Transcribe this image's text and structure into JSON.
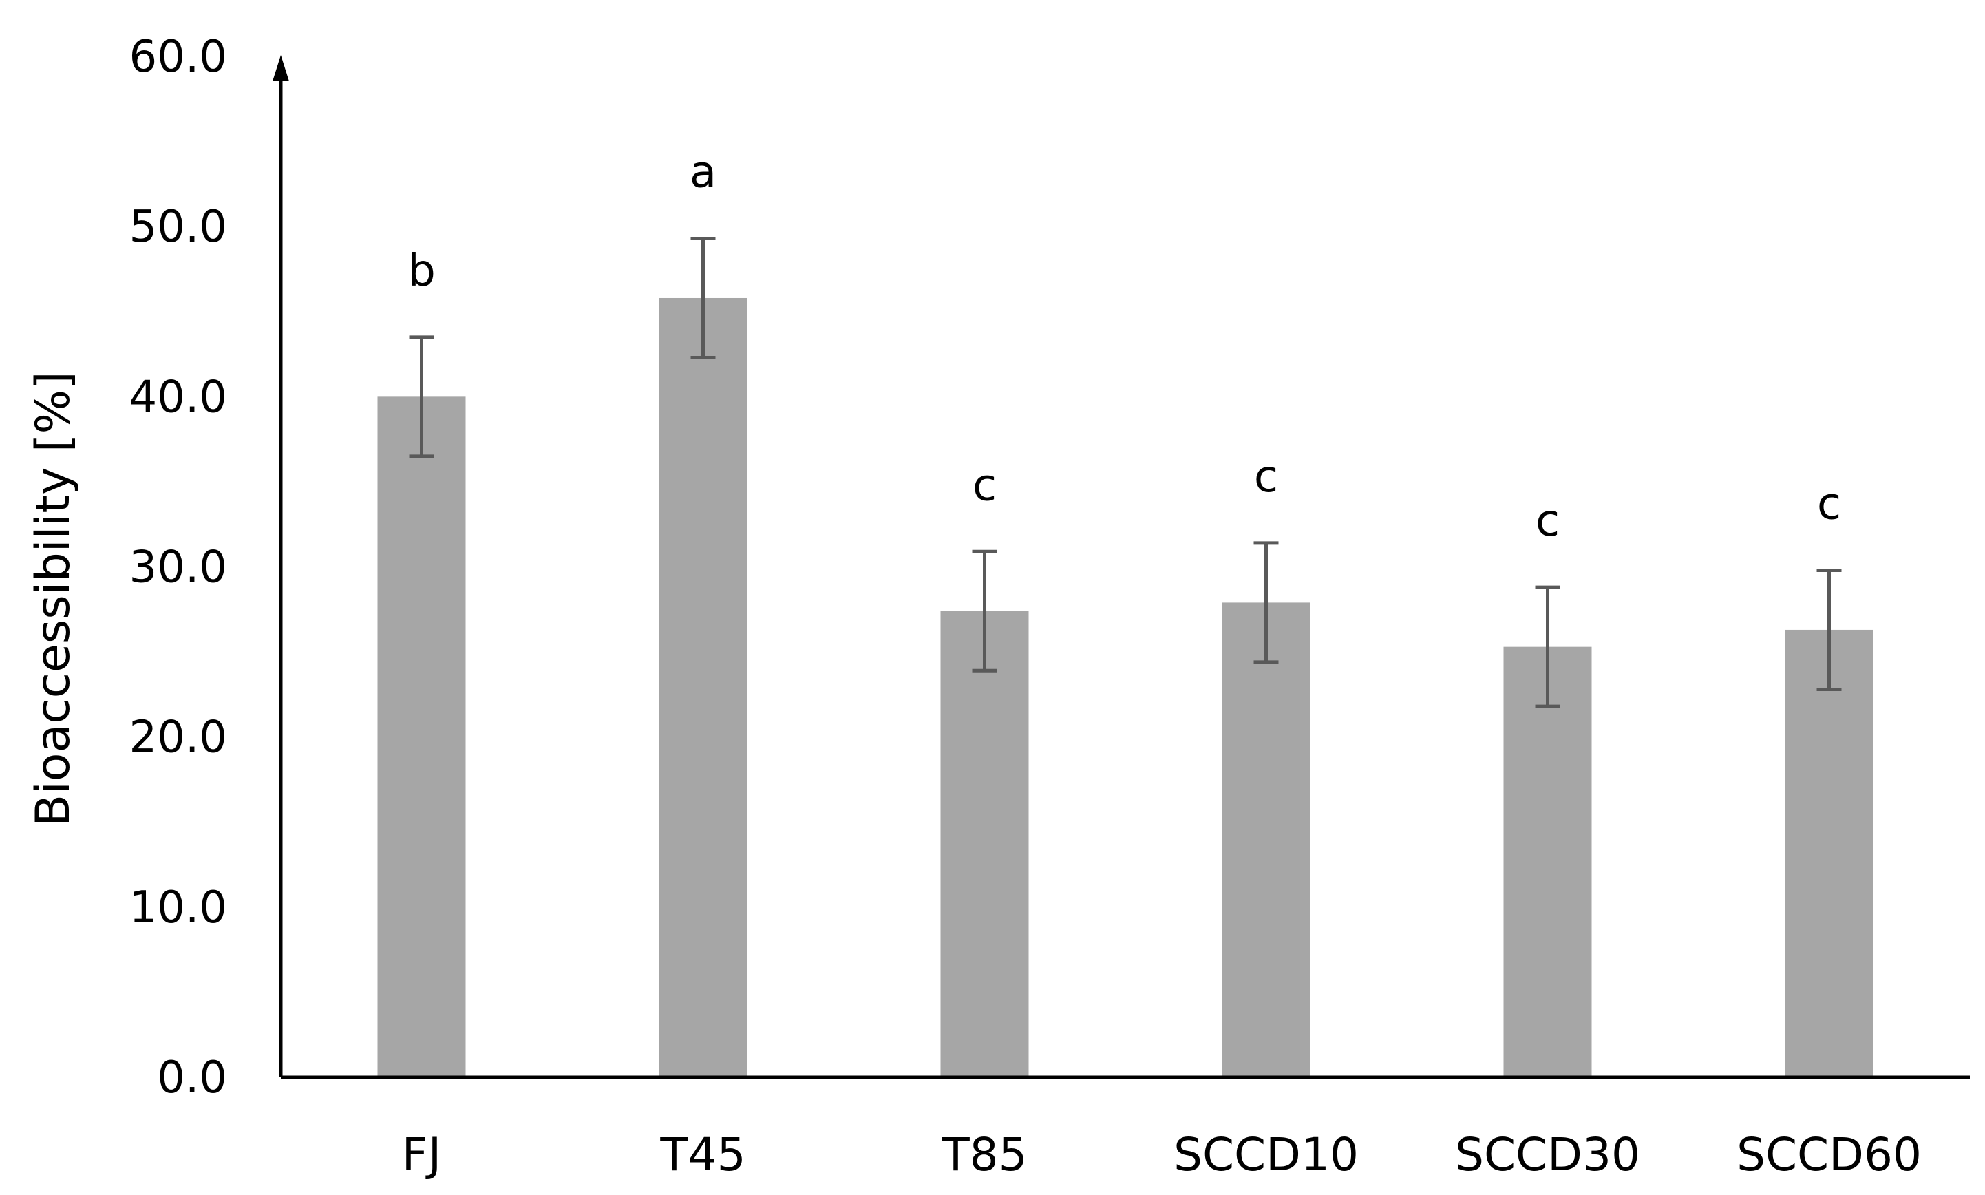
{
  "chart_data": {
    "type": "bar",
    "title": "",
    "xlabel": "",
    "ylabel": "Bioaccessibility [%]",
    "ylim": [
      0,
      60
    ],
    "yticks": [
      "0.0",
      "10.0",
      "20.0",
      "30.0",
      "40.0",
      "50.0",
      "60.0"
    ],
    "categories": [
      "FJ",
      "T45",
      "T85",
      "SCCD10",
      "SCCD30",
      "SCCD60"
    ],
    "values": [
      40.0,
      45.8,
      27.4,
      27.9,
      25.3,
      26.3
    ],
    "errors": [
      3.5,
      3.5,
      3.5,
      3.5,
      3.5,
      3.5
    ],
    "significance": [
      "b",
      "a",
      "c",
      "c",
      "c",
      "c"
    ],
    "grid": false,
    "colors": {
      "bar": "#a6a6a6",
      "error": "#595959",
      "axis": "#000000"
    }
  }
}
